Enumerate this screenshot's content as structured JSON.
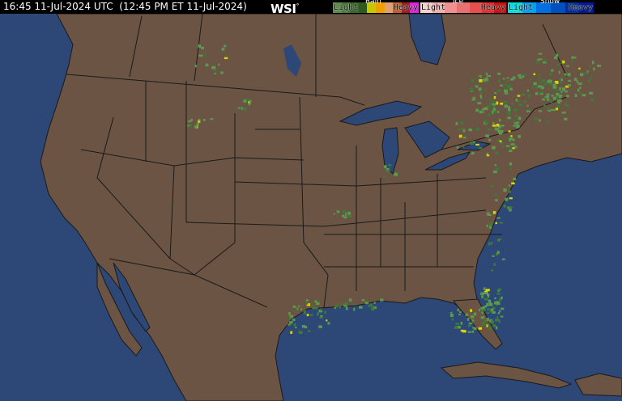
{
  "header": {
    "timestamp": "16:45 11-Jul-2024 UTC  (12:45 PM ET 11-Jul-2024)",
    "logo": "WSI",
    "logo_mark": "°"
  },
  "legend": {
    "rain": {
      "title": "Rain",
      "light": "Light",
      "heavy": "Heavy",
      "colors": [
        "#5e8a4e",
        "#4a7a3a",
        "#3a6a2a",
        "#2e5a20",
        "#c8c800",
        "#f0a000",
        "#e0a070",
        "#c06030",
        "#a02020",
        "#e020e0"
      ]
    },
    "ice": {
      "title": "Ice",
      "light": "Light",
      "heavy": "Heavy",
      "colors": [
        "#f8d0d0",
        "#f0b0b0",
        "#f09090",
        "#e87070",
        "#e85050",
        "#e03030",
        "#d01010"
      ]
    },
    "snow": {
      "title": "Snow",
      "light": "Light",
      "heavy": "Heavy",
      "colors": [
        "#00e0e0",
        "#00a0f0",
        "#0070e0",
        "#0050c0",
        "#0030a0",
        "#001890"
      ]
    }
  },
  "map": {
    "ocean_color": "#2d4777",
    "land_color": "#6b5444",
    "border_color": "#1a1a1a",
    "radar_light": "#5a9a50",
    "radar_med": "#3e7a38",
    "radar_yellow": "#d8d800"
  }
}
